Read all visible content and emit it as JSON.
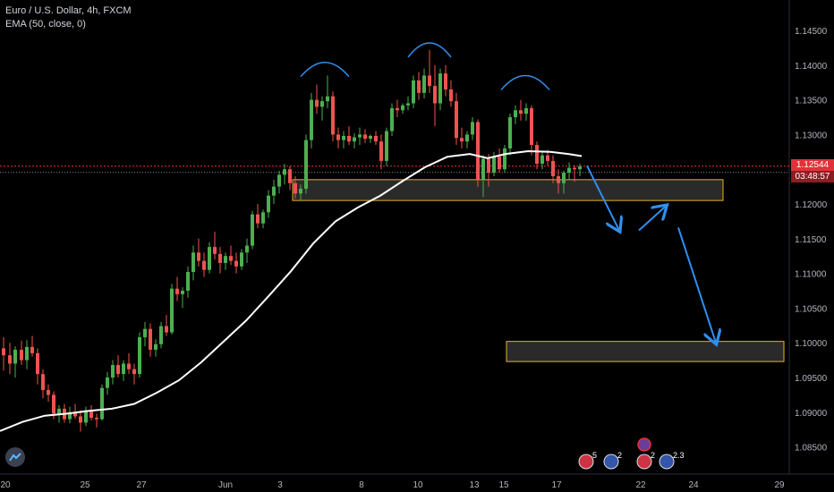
{
  "header": {
    "symbol_line": "Euro / U.S. Dollar, 4h, FXCM",
    "indicator_line": "EMA (50, close, 0)"
  },
  "price_labels": {
    "current_price": "1.12544",
    "countdown": "03:48:57"
  },
  "colors": {
    "background": "#000000",
    "up": "#26a69a",
    "up_candle": "#4caf50",
    "down": "#ef5350",
    "ema": "#ffffff",
    "zone_border": "#e6b422",
    "arrow": "#2f8ff0",
    "arc": "#2f8ff0",
    "price_line": "#e1323a",
    "axis_text": "#b2b5be"
  },
  "chart_data": {
    "type": "candlestick",
    "symbol": "Euro / U.S. Dollar",
    "interval": "4h",
    "source": "FXCM",
    "y_ticks": [
      "1.14500",
      "1.14000",
      "1.13500",
      "1.13000",
      "1.12500",
      "1.12000",
      "1.11500",
      "1.11000",
      "1.10500",
      "1.10000",
      "1.09500",
      "1.09000",
      "1.08500"
    ],
    "x_ticks": [
      "20",
      "25",
      "27",
      "Jun",
      "3",
      "8",
      "10",
      "13",
      "15",
      "17",
      "22",
      "24",
      "29"
    ],
    "ylim": [
      1.0825,
      1.147
    ],
    "grid": false,
    "ema": {
      "label": "EMA (50, close, 0)",
      "points": [
        [
          0,
          1.0873
        ],
        [
          25,
          1.0886
        ],
        [
          50,
          1.0895
        ],
        [
          75,
          1.0898
        ],
        [
          100,
          1.0902
        ],
        [
          125,
          1.0905
        ],
        [
          150,
          1.0912
        ],
        [
          175,
          1.0928
        ],
        [
          200,
          1.0946
        ],
        [
          225,
          1.0972
        ],
        [
          250,
          1.1002
        ],
        [
          275,
          1.1032
        ],
        [
          300,
          1.1067
        ],
        [
          325,
          1.1103
        ],
        [
          350,
          1.1143
        ],
        [
          375,
          1.1175
        ],
        [
          400,
          1.1195
        ],
        [
          425,
          1.1212
        ],
        [
          450,
          1.1233
        ],
        [
          475,
          1.1253
        ],
        [
          500,
          1.1268
        ],
        [
          525,
          1.1272
        ],
        [
          545,
          1.1266
        ],
        [
          565,
          1.1272
        ],
        [
          590,
          1.1276
        ],
        [
          615,
          1.1275
        ],
        [
          635,
          1.1272
        ],
        [
          650,
          1.1269
        ]
      ]
    },
    "candles": [
      [
        4,
        1.0992,
        1.1008,
        1.096,
        1.0982
      ],
      [
        11,
        1.0982,
        1.1,
        1.0955,
        1.097
      ],
      [
        17,
        1.097,
        1.0995,
        1.095,
        1.099
      ],
      [
        24,
        1.099,
        1.1003,
        1.0968,
        1.0975
      ],
      [
        30,
        1.0975,
        1.1004,
        1.0962,
        1.0994
      ],
      [
        36,
        1.0994,
        1.101,
        1.098,
        1.0985
      ],
      [
        42,
        1.0985,
        1.0992,
        1.094,
        1.0955
      ],
      [
        48,
        1.0955,
        1.0962,
        1.092,
        1.0932
      ],
      [
        54,
        1.0932,
        1.094,
        1.0915,
        1.0925
      ],
      [
        60,
        1.0925,
        1.093,
        1.089,
        1.0898
      ],
      [
        66,
        1.0898,
        1.091,
        1.0885,
        1.0905
      ],
      [
        72,
        1.0905,
        1.0912,
        1.0885,
        1.089
      ],
      [
        78,
        1.089,
        1.0908,
        1.0884,
        1.09
      ],
      [
        84,
        1.09,
        1.0912,
        1.089,
        1.0894
      ],
      [
        90,
        1.0894,
        1.0903,
        1.0872,
        1.0885
      ],
      [
        96,
        1.0885,
        1.0908,
        1.088,
        1.0903
      ],
      [
        102,
        1.0903,
        1.091,
        1.0888,
        1.0892
      ],
      [
        108,
        1.0892,
        1.0898,
        1.0878,
        1.089
      ],
      [
        114,
        1.089,
        1.094,
        1.0888,
        1.0935
      ],
      [
        120,
        1.0935,
        1.0958,
        1.0925,
        1.095
      ],
      [
        126,
        1.095,
        1.0975,
        1.094,
        1.0968
      ],
      [
        132,
        1.0968,
        1.0982,
        1.095,
        1.0955
      ],
      [
        138,
        1.0955,
        1.0975,
        1.0945,
        1.097
      ],
      [
        144,
        1.097,
        1.0985,
        1.0955,
        1.0962
      ],
      [
        150,
        1.0962,
        1.097,
        1.094,
        1.0955
      ],
      [
        156,
        1.0955,
        1.1015,
        1.095,
        1.1008
      ],
      [
        162,
        1.1008,
        1.103,
        1.0995,
        1.102
      ],
      [
        168,
        1.102,
        1.1028,
        1.098,
        1.099
      ],
      [
        174,
        1.099,
        1.1005,
        1.098,
        1.0998
      ],
      [
        180,
        1.0998,
        1.103,
        1.0992,
        1.1024
      ],
      [
        186,
        1.1024,
        1.104,
        1.101,
        1.1015
      ],
      [
        192,
        1.1015,
        1.1085,
        1.1012,
        1.1078
      ],
      [
        198,
        1.1078,
        1.1095,
        1.106,
        1.107
      ],
      [
        204,
        1.107,
        1.108,
        1.105,
        1.1075
      ],
      [
        210,
        1.1075,
        1.111,
        1.1065,
        1.1102
      ],
      [
        216,
        1.1102,
        1.114,
        1.109,
        1.113
      ],
      [
        222,
        1.113,
        1.115,
        1.111,
        1.1118
      ],
      [
        228,
        1.1118,
        1.113,
        1.1095,
        1.1105
      ],
      [
        234,
        1.1105,
        1.1145,
        1.11,
        1.1138
      ],
      [
        240,
        1.1138,
        1.116,
        1.112,
        1.1128
      ],
      [
        246,
        1.1128,
        1.1138,
        1.11,
        1.1115
      ],
      [
        252,
        1.1115,
        1.113,
        1.1105,
        1.1125
      ],
      [
        258,
        1.1125,
        1.114,
        1.1112,
        1.1118
      ],
      [
        264,
        1.1118,
        1.113,
        1.11,
        1.111
      ],
      [
        270,
        1.111,
        1.1135,
        1.1105,
        1.113
      ],
      [
        276,
        1.113,
        1.115,
        1.1115,
        1.114
      ],
      [
        282,
        1.114,
        1.119,
        1.1135,
        1.1185
      ],
      [
        288,
        1.1185,
        1.12,
        1.1165,
        1.1172
      ],
      [
        294,
        1.1172,
        1.1192,
        1.1165,
        1.1188
      ],
      [
        300,
        1.1188,
        1.122,
        1.118,
        1.1212
      ],
      [
        306,
        1.1212,
        1.1235,
        1.12,
        1.1225
      ],
      [
        312,
        1.1225,
        1.1248,
        1.1215,
        1.1242
      ],
      [
        318,
        1.1242,
        1.1258,
        1.1228,
        1.125
      ],
      [
        324,
        1.125,
        1.1255,
        1.122,
        1.123
      ],
      [
        330,
        1.123,
        1.124,
        1.1208,
        1.1215
      ],
      [
        336,
        1.1215,
        1.1228,
        1.1205,
        1.1222
      ],
      [
        342,
        1.1222,
        1.13,
        1.1215,
        1.1292
      ],
      [
        348,
        1.1292,
        1.136,
        1.128,
        1.135
      ],
      [
        354,
        1.135,
        1.1372,
        1.133,
        1.134
      ],
      [
        360,
        1.134,
        1.1355,
        1.132,
        1.1348
      ],
      [
        366,
        1.1348,
        1.1385,
        1.1338,
        1.1355
      ],
      [
        372,
        1.1355,
        1.1362,
        1.129,
        1.13
      ],
      [
        378,
        1.13,
        1.131,
        1.128,
        1.1292
      ],
      [
        384,
        1.1292,
        1.1305,
        1.128,
        1.1298
      ],
      [
        390,
        1.1298,
        1.1312,
        1.1285,
        1.129
      ],
      [
        396,
        1.129,
        1.1302,
        1.128,
        1.1296
      ],
      [
        402,
        1.1296,
        1.131,
        1.1285,
        1.13
      ],
      [
        408,
        1.13,
        1.1308,
        1.1288,
        1.1294
      ],
      [
        414,
        1.1294,
        1.13,
        1.1288,
        1.1298
      ],
      [
        420,
        1.1298,
        1.1305,
        1.1285,
        1.129
      ],
      [
        426,
        1.129,
        1.13,
        1.125,
        1.1262
      ],
      [
        432,
        1.1262,
        1.131,
        1.1255,
        1.1305
      ],
      [
        438,
        1.1305,
        1.1345,
        1.1298,
        1.1338
      ],
      [
        444,
        1.1338,
        1.135,
        1.1325,
        1.1335
      ],
      [
        450,
        1.1335,
        1.1345,
        1.133,
        1.1342
      ],
      [
        456,
        1.1342,
        1.1355,
        1.1335,
        1.1345
      ],
      [
        462,
        1.1345,
        1.1385,
        1.1338,
        1.1378
      ],
      [
        468,
        1.1378,
        1.139,
        1.135,
        1.136
      ],
      [
        474,
        1.136,
        1.1395,
        1.1352,
        1.1385
      ],
      [
        480,
        1.1385,
        1.1422,
        1.136,
        1.137
      ],
      [
        486,
        1.137,
        1.14,
        1.1312,
        1.1345
      ],
      [
        492,
        1.1345,
        1.1395,
        1.1335,
        1.1388
      ],
      [
        498,
        1.1388,
        1.14,
        1.1355,
        1.1365
      ],
      [
        504,
        1.1365,
        1.1378,
        1.134,
        1.1348
      ],
      [
        510,
        1.1348,
        1.136,
        1.1285,
        1.1295
      ],
      [
        516,
        1.1295,
        1.131,
        1.128,
        1.129
      ],
      [
        522,
        1.129,
        1.1305,
        1.128,
        1.13
      ],
      [
        528,
        1.13,
        1.1325,
        1.1292,
        1.1318
      ],
      [
        534,
        1.1318,
        1.1322,
        1.1225,
        1.1235
      ],
      [
        540,
        1.1235,
        1.127,
        1.121,
        1.1265
      ],
      [
        546,
        1.1265,
        1.1272,
        1.1225,
        1.1245
      ],
      [
        552,
        1.1245,
        1.1275,
        1.124,
        1.1268
      ],
      [
        558,
        1.1268,
        1.128,
        1.1245,
        1.125
      ],
      [
        564,
        1.125,
        1.1285,
        1.1245,
        1.128
      ],
      [
        570,
        1.128,
        1.133,
        1.127,
        1.1325
      ],
      [
        576,
        1.1325,
        1.1342,
        1.1315,
        1.1335
      ],
      [
        582,
        1.1335,
        1.135,
        1.132,
        1.133
      ],
      [
        588,
        1.133,
        1.1345,
        1.132,
        1.1338
      ],
      [
        594,
        1.1338,
        1.1342,
        1.127,
        1.1285
      ],
      [
        600,
        1.1285,
        1.129,
        1.125,
        1.1258
      ],
      [
        606,
        1.1258,
        1.1275,
        1.125,
        1.127
      ],
      [
        612,
        1.127,
        1.1278,
        1.1255,
        1.1262
      ],
      [
        618,
        1.1262,
        1.127,
        1.123,
        1.124
      ],
      [
        624,
        1.124,
        1.125,
        1.1215,
        1.123
      ],
      [
        630,
        1.123,
        1.1248,
        1.1215,
        1.1245
      ],
      [
        636,
        1.1245,
        1.126,
        1.1235,
        1.1252
      ],
      [
        642,
        1.1252,
        1.1256,
        1.1232,
        1.125
      ],
      [
        648,
        1.125,
        1.1258,
        1.124,
        1.1254
      ]
    ],
    "current_price": 1.12544,
    "annotations": {
      "zones": [
        {
          "name": "support-zone-upper",
          "x0": 327,
          "x1": 808,
          "y_high": 1.1235,
          "y_low": 1.1205
        },
        {
          "name": "target-zone-lower",
          "x0": 566,
          "x1": 876,
          "y_high": 1.1002,
          "y_low": 1.0973
        }
      ],
      "head_shoulders_arcs": [
        {
          "name": "left-shoulder-arc",
          "cx": 363,
          "y_peak": 1.1404,
          "half_width": 27
        },
        {
          "name": "head-arc",
          "cx": 480,
          "y_peak": 1.1432,
          "half_width": 24
        },
        {
          "name": "right-shoulder-arc",
          "cx": 587,
          "y_peak": 1.1385,
          "half_width": 27
        }
      ],
      "projection_arrows": [
        {
          "name": "arrow-down-1",
          "from": [
            656,
            1.1255
          ],
          "to": [
            692,
            1.1162
          ]
        },
        {
          "name": "arrow-up",
          "from": [
            714,
            1.1162
          ],
          "to": [
            744,
            1.1197
          ]
        },
        {
          "name": "arrow-down-2",
          "from": [
            758,
            1.1166
          ],
          "to": [
            800,
            1.1
          ]
        }
      ]
    }
  },
  "events": [
    {
      "name": "event-flag-us",
      "x": 655,
      "label": "5"
    },
    {
      "name": "event-flag-eu",
      "x": 683,
      "label": "2"
    },
    {
      "name": "event-flag-ch",
      "x": 720,
      "label": "2"
    },
    {
      "name": "event-flag-eu-2",
      "x": 745,
      "label": "2.3"
    }
  ]
}
